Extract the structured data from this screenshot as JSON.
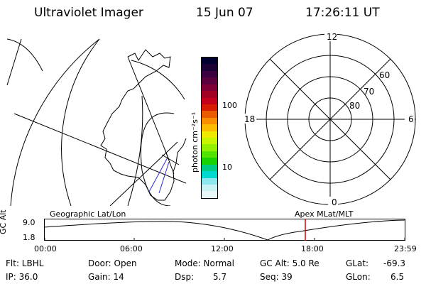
{
  "header": {
    "title": "Ultraviolet Imager",
    "date": "15 Jun 07",
    "time": "17:26:11 UT"
  },
  "colorbar": {
    "label": "photon cm⁻²s⁻¹",
    "ticks": [
      "100",
      "10"
    ],
    "colors": [
      "#000030",
      "#1a0033",
      "#3a0040",
      "#5a003f",
      "#7e0037",
      "#a30024",
      "#c4001c",
      "#d81a00",
      "#ec5a00",
      "#f98f00",
      "#fbbc00",
      "#eeea00",
      "#c8f500",
      "#93f000",
      "#52e400",
      "#19d000",
      "#00ca84",
      "#00d8d0",
      "#8ce8ee",
      "#c8f2f4",
      "#e8f8f8"
    ]
  },
  "polar_grid": {
    "labels": [
      "12",
      "6",
      "18",
      "0"
    ],
    "lat_labels": [
      "60",
      "70",
      "80"
    ]
  },
  "altitude_plot": {
    "left_caption": "Geographic Lat/Lon",
    "right_caption": "Apex  MLat/MLT",
    "axis_label": "GC Alt",
    "y_ticks": [
      "9.0",
      "1.8"
    ],
    "x_ticks": [
      "00:00",
      "06:00",
      "12:00",
      "18:00",
      "23:59"
    ],
    "marker_color": "#d00000"
  },
  "info": {
    "filter": "Flt: LBHL",
    "ip": "IP: 36.0",
    "door": "Door: Open",
    "gain": "Gain: 14",
    "mode": "Mode: Normal",
    "dsp_label": "Dsp:",
    "dsp_value": "5.7",
    "gc_alt": "GC Alt: 5.0 Re",
    "seq": "Seq: 39",
    "glat_label": "GLat:",
    "glat_value": "-69.3",
    "glon_label": "GLon:",
    "glon_value": "6.5"
  }
}
